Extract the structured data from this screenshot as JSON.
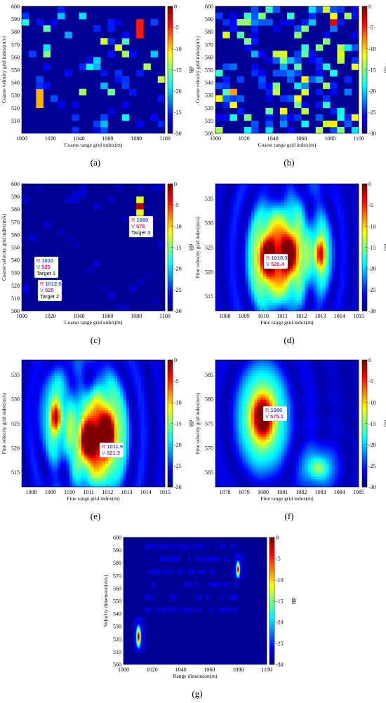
{
  "colors": {
    "cmap_low": "#00008f",
    "cmap_mid": "#7fff7f",
    "cmap_high": "#7f0000",
    "annotation_R": "#cc2277",
    "annotation_V": "#3355cc"
  },
  "chart_data": [
    {
      "type": "heatmap",
      "panel_label": "(a)",
      "xlabel": "Coarse range grid index(m)",
      "ylabel": "Coarse velocity grid index(m/s)",
      "xlim": [
        1000,
        1100
      ],
      "ylim": [
        500,
        600
      ],
      "xticks": [
        "1000",
        "1020",
        "1040",
        "1060",
        "1080",
        "1100"
      ],
      "yticks": [
        "510",
        "520",
        "530",
        "540",
        "550",
        "560",
        "570",
        "580",
        "590",
        "600"
      ],
      "colorbar": {
        "label": "dB",
        "range": [
          -30,
          0
        ],
        "ticks": [
          "0",
          "-5",
          "-10",
          "-15",
          "-20",
          "-25",
          "-30"
        ]
      },
      "annotations": []
    },
    {
      "type": "heatmap",
      "panel_label": "(b)",
      "xlabel": "Coarse range grid index(m)",
      "ylabel": "Coarse velocity grid index(m/s)",
      "xlim": [
        1000,
        1100
      ],
      "ylim": [
        500,
        600
      ],
      "xticks": [
        "1000",
        "1020",
        "1040",
        "1060",
        "1080",
        "1100"
      ],
      "yticks": [
        "500",
        "510",
        "520",
        "530",
        "540",
        "550",
        "560",
        "570",
        "580",
        "590",
        "600"
      ],
      "colorbar": {
        "label": "dB",
        "range": [
          -30,
          0
        ],
        "ticks": [
          "0",
          "-5",
          "-10",
          "-15",
          "-20",
          "-25",
          "-30"
        ]
      },
      "annotations": []
    },
    {
      "type": "heatmap",
      "panel_label": "(c)",
      "xlabel": "Coarse range grid index(m)",
      "ylabel": "Coarse velocity grid index(m/s)",
      "xlim": [
        1000,
        1100
      ],
      "ylim": [
        500,
        600
      ],
      "xticks": [
        "1000",
        "1020",
        "1040",
        "1060",
        "1080",
        "1100"
      ],
      "yticks": [
        "500",
        "510",
        "520",
        "530",
        "540",
        "550",
        "560",
        "570",
        "580",
        "590",
        "600"
      ],
      "colorbar": {
        "label": "dB",
        "range": [
          -30,
          0
        ],
        "ticks": [
          "0",
          "-5",
          "-10",
          "-15",
          "-20",
          "-25",
          "-30"
        ]
      },
      "annotations": [
        {
          "r": "1010",
          "v": "525",
          "name": "Target 1"
        },
        {
          "r": "1012.5",
          "v": "525",
          "name": "Target 2"
        },
        {
          "r": "1080",
          "v": "575",
          "name": "Target 3"
        }
      ]
    },
    {
      "type": "heatmap",
      "panel_label": "(d)",
      "xlabel": "Fine range grid index(m)",
      "ylabel": "Fine velocity grid index(m/s)",
      "xlim": [
        1007.5,
        1015
      ],
      "ylim": [
        512,
        538
      ],
      "xticks": [
        "1008",
        "1009",
        "1010",
        "1011",
        "1012",
        "1013",
        "1014",
        "1015"
      ],
      "yticks": [
        "515",
        "520",
        "525",
        "530",
        "535"
      ],
      "colorbar": {
        "label": "dB",
        "range": [
          -30,
          0
        ],
        "ticks": [
          "0",
          "-5",
          "-10",
          "-15",
          "-20",
          "-25",
          "-30"
        ]
      },
      "annotations": [
        {
          "r": "1010.3",
          "v": "520.4"
        }
      ]
    },
    {
      "type": "heatmap",
      "panel_label": "(e)",
      "xlabel": "Fine range grid index(m)",
      "ylabel": "Fine velocity grid index(m/s)",
      "xlim": [
        1007.5,
        1015
      ],
      "ylim": [
        512,
        538
      ],
      "xticks": [
        "1008",
        "1009",
        "1010",
        "1011",
        "1012",
        "1013",
        "1014",
        "1015"
      ],
      "yticks": [
        "515",
        "520",
        "525",
        "530",
        "535"
      ],
      "colorbar": {
        "label": "dB",
        "range": [
          -30,
          0
        ],
        "ticks": [
          "0",
          "-5",
          "-10",
          "-15",
          "-20",
          "-25",
          "-30"
        ]
      },
      "annotations": [
        {
          "r": "1011.9",
          "v": "521.3"
        }
      ]
    },
    {
      "type": "heatmap",
      "panel_label": "(f)",
      "xlabel": "Fine range grid index(m)",
      "ylabel": "Fine velocity grid index(m/s)",
      "xlim": [
        1077.5,
        1085
      ],
      "ylim": [
        562,
        588
      ],
      "xticks": [
        "1078",
        "1079",
        "1080",
        "1081",
        "1082",
        "1083",
        "1084",
        "1085"
      ],
      "yticks": [
        "565",
        "570",
        "575",
        "580",
        "585"
      ],
      "colorbar": {
        "label": "dB",
        "range": [
          -30,
          0
        ],
        "ticks": [
          "0",
          "-5",
          "-10",
          "-15",
          "-20",
          "-25",
          "-30"
        ]
      },
      "annotations": [
        {
          "r": "1080",
          "v": "575.1"
        }
      ]
    },
    {
      "type": "heatmap",
      "panel_label": "(g)",
      "xlabel": "Range dimension(m)",
      "ylabel": "Velocity dimension(m/s)",
      "xlim": [
        1000,
        1100
      ],
      "ylim": [
        500,
        600
      ],
      "xticks": [
        "1000",
        "1020",
        "1040",
        "1060",
        "1080",
        "1100"
      ],
      "yticks": [
        "500",
        "510",
        "520",
        "530",
        "540",
        "550",
        "560",
        "570",
        "580",
        "590",
        "600"
      ],
      "colorbar": {
        "label": "dB",
        "range": [
          -30,
          0
        ],
        "ticks": [
          "0",
          "-5",
          "-10",
          "-15",
          "-20",
          "-25",
          "-30"
        ]
      },
      "annotations": []
    }
  ]
}
